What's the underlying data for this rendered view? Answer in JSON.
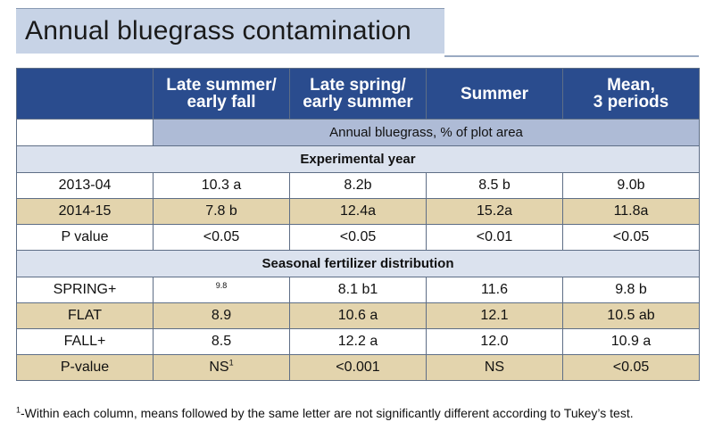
{
  "title": "Annual bluegrass contamination",
  "columns": [
    "Late summer/\nearly fall",
    "Late spring/\nearly summer",
    "Summer",
    "Mean,\n3 periods"
  ],
  "columns_line1": [
    "Late summer/",
    "Late spring/",
    "Summer",
    "Mean,"
  ],
  "columns_line2": [
    "early fall",
    "early summer",
    "",
    "3 periods"
  ],
  "unit_label": "Annual bluegrass, % of plot area",
  "sections": [
    {
      "label": "Experimental year",
      "rows": [
        {
          "label": "2013-04",
          "cells": [
            "10.3 a",
            "8.2b",
            "8.5 b",
            "9.0b"
          ]
        },
        {
          "label": "2014-15",
          "cells": [
            "7.8 b",
            "12.4a",
            "15.2a",
            "11.8a"
          ]
        },
        {
          "label": "P value",
          "cells": [
            "<0.05",
            "<0.05",
            "<0.01",
            "<0.05"
          ]
        }
      ]
    },
    {
      "label": "Seasonal fertilizer distribution",
      "rows": [
        {
          "label": "SPRING+",
          "cells": [
            "9.8",
            "8.1 b1",
            "11.6",
            "9.8 b"
          ]
        },
        {
          "label": "FLAT",
          "cells": [
            "8.9",
            "10.6 a",
            "12.1",
            "10.5 ab"
          ]
        },
        {
          "label": "FALL+",
          "cells": [
            "8.5",
            "12.2 a",
            "12.0",
            "10.9 a"
          ]
        },
        {
          "label": "P-value",
          "cells": [
            "NS",
            "<0.001",
            "NS",
            "<0.05"
          ],
          "first_cell_sup": "1"
        }
      ]
    }
  ],
  "footnote_mark": "1",
  "footnote_text": "-Within each column, means followed by the same letter are not significantly different according to Tukey’s test.",
  "colors": {
    "header_blue": "#2a4c8e",
    "unit_blue": "#aebbd6",
    "section_blue": "#dbe2ee",
    "tan_row": "#e3d4ad",
    "title_box": "#c7d3e6"
  }
}
